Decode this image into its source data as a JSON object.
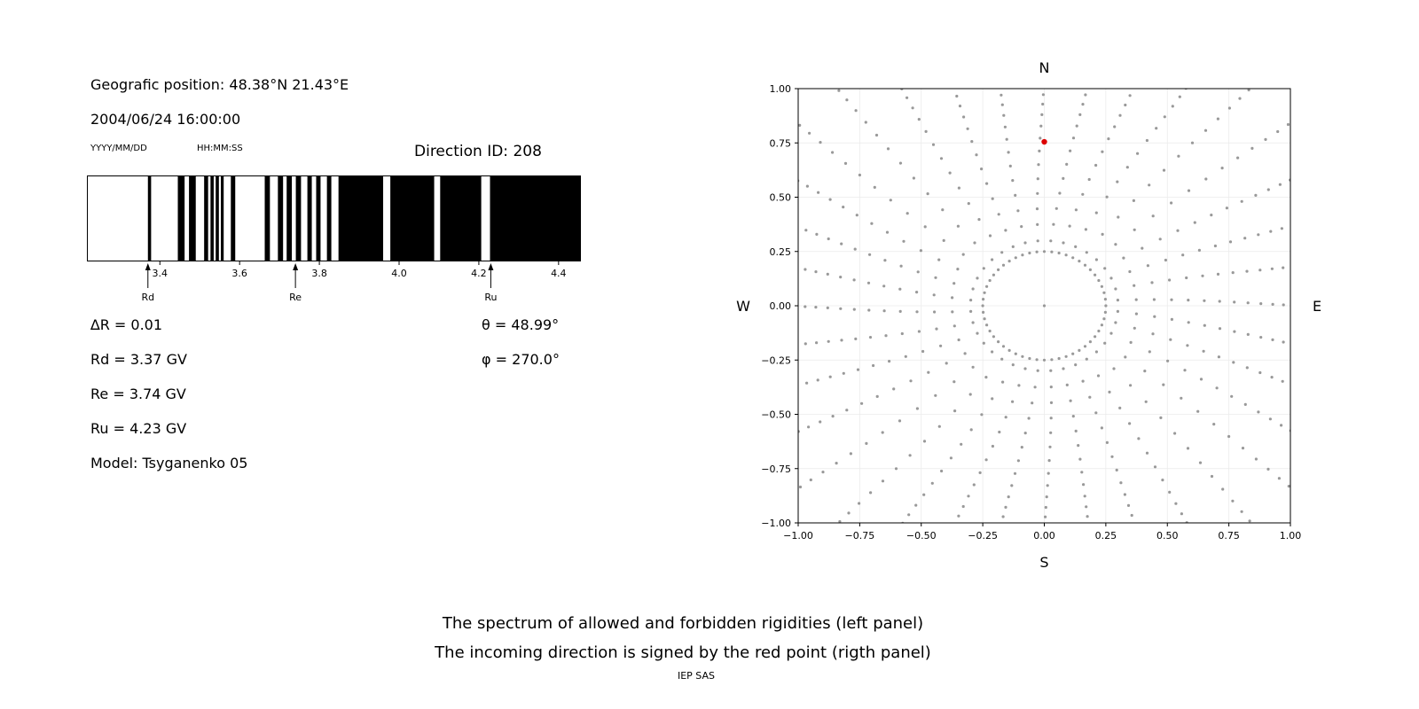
{
  "figure": {
    "background": "#ffffff"
  },
  "left_panel": {
    "geo_position": "Geografic position: 48.38°N 21.43°E",
    "datetime": "2004/06/24 16:00:00",
    "date_format": "YYYY/MM/DD",
    "time_format": "HH:MM:SS",
    "direction_id": "Direction ID: 208",
    "delta_r": "∆R = 0.01",
    "rd": "Rd = 3.37 GV",
    "re": "Re = 3.74 GV",
    "ru": "Ru = 4.23 GV",
    "model": "Model: Tsyganenko 05",
    "theta": "θ = 48.99°",
    "phi": "φ = 270.0°"
  },
  "caption": {
    "line1": "The spectrum of allowed and forbidden rigidities (left panel)",
    "line2": "The incoming direction is signed by the red point (rigth panel)",
    "credit": "IEP SAS"
  },
  "chart_data": [
    {
      "type": "bar",
      "name": "rigidity-spectrum-barcode",
      "description": "Cutoff rigidity penumbra: black bands = forbidden rigidities, white = allowed",
      "x_range_gv": [
        3.217,
        4.456
      ],
      "xticks": [
        3.4,
        3.6,
        3.8,
        4.0,
        4.2,
        4.4
      ],
      "xtick_labels": [
        "3.4",
        "3.6",
        "3.8",
        "4.0",
        "4.2",
        "4.4"
      ],
      "forbidden_intervals_gv": [
        [
          3.37,
          3.378
        ],
        [
          3.445,
          3.462
        ],
        [
          3.473,
          3.49
        ],
        [
          3.511,
          3.521
        ],
        [
          3.527,
          3.535
        ],
        [
          3.54,
          3.548
        ],
        [
          3.553,
          3.56
        ],
        [
          3.578,
          3.589
        ],
        [
          3.663,
          3.676
        ],
        [
          3.696,
          3.709
        ],
        [
          3.718,
          3.731
        ],
        [
          3.741,
          3.754
        ],
        [
          3.77,
          3.781
        ],
        [
          3.792,
          3.803
        ],
        [
          3.819,
          3.83
        ],
        [
          3.848,
          3.96
        ],
        [
          3.978,
          4.088
        ],
        [
          4.103,
          4.206
        ],
        [
          4.228,
          4.456
        ]
      ],
      "markers": [
        {
          "label": "Rd",
          "value_gv": 3.37
        },
        {
          "label": "Re",
          "value_gv": 3.74
        },
        {
          "label": "Ru",
          "value_gv": 4.23
        }
      ],
      "bar_color": "#000000",
      "background": "#ffffff"
    },
    {
      "type": "scatter",
      "name": "incoming-direction-map",
      "description": "Sky map of asymptotic directions as radial spokes of gray dots; red point marks the incoming direction",
      "xlim": [
        -1.0,
        1.0
      ],
      "ylim": [
        -1.0,
        1.0
      ],
      "ticks": [
        -1.0,
        -0.75,
        -0.5,
        -0.25,
        0.0,
        0.25,
        0.5,
        0.75,
        1.0
      ],
      "tick_labels": [
        "−1.00",
        "−0.75",
        "−0.50",
        "−0.25",
        "0.00",
        "0.25",
        "0.50",
        "0.75",
        "1.00"
      ],
      "grid": true,
      "compass_labels": {
        "top": "N",
        "bottom": "S",
        "left": "W",
        "right": "E"
      },
      "dot_color": "#999999",
      "pattern": {
        "type": "radial-spokes",
        "spoke_count": 36,
        "inner_radius": 0.3,
        "outer_radius_max": 1.45,
        "dots_per_spoke": 15,
        "ring_radius": 0.25,
        "ring_dot_count": 52,
        "center_dot": true,
        "curvature_deg": 5
      },
      "highlight_point": {
        "x": 0.0,
        "y": 0.755,
        "color": "#dd0000",
        "label": "incoming direction"
      }
    }
  ]
}
